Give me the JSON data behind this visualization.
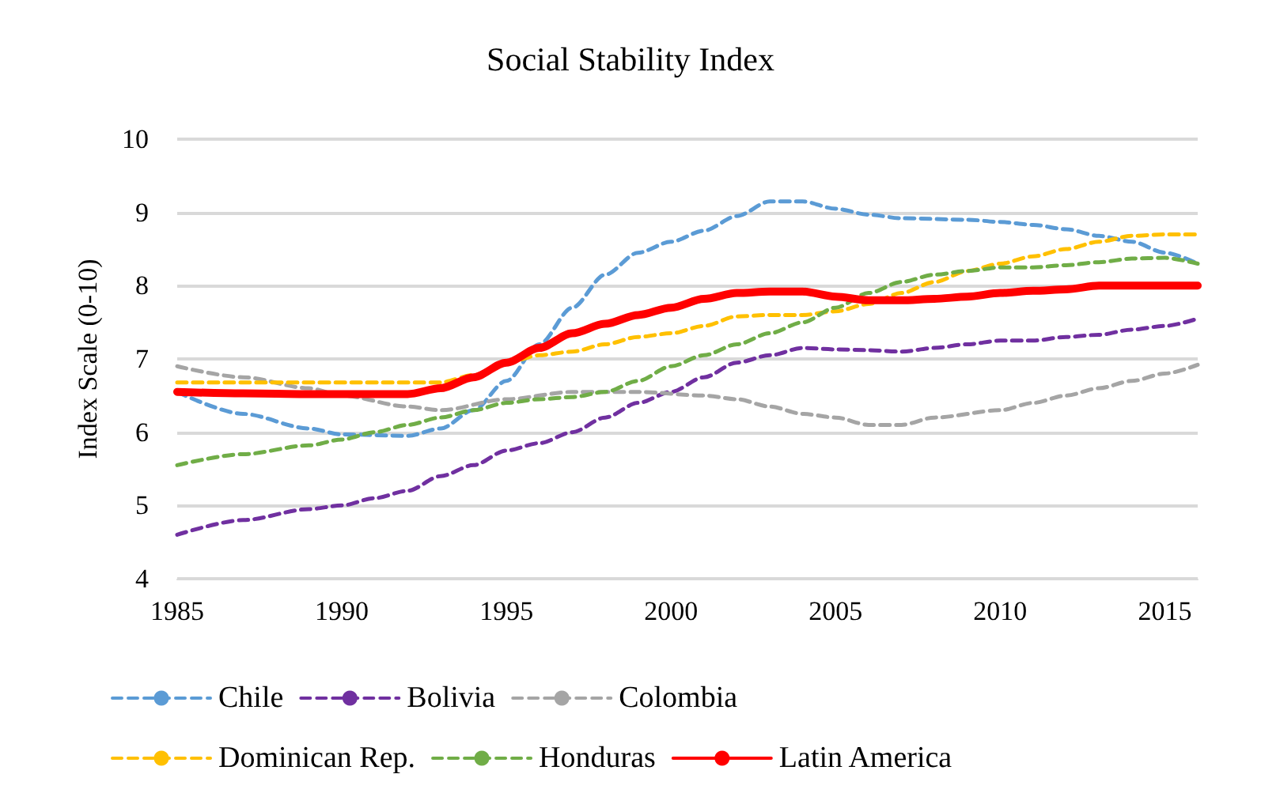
{
  "chart_data": {
    "type": "line",
    "title": "Social Stability Index",
    "ylabel": "Index Scale (0-10)",
    "xlim": [
      1985,
      2016
    ],
    "xticks": [
      1985,
      1990,
      1995,
      2000,
      2005,
      2010,
      2015
    ],
    "ylim": [
      4,
      10
    ],
    "yticks": [
      4,
      5,
      6,
      7,
      8,
      9,
      10
    ],
    "grid": "y",
    "legend": "bottom",
    "marker": "none",
    "series": [
      {
        "name": "Chile",
        "color": "#5b9bd5",
        "line_style": "dashed",
        "x": [
          1985,
          1987,
          1989,
          1990,
          1992,
          1993,
          1994,
          1995,
          1996,
          1997,
          1998,
          1999,
          2000,
          2001,
          2002,
          2003,
          2004,
          2005,
          2006,
          2007,
          2009,
          2010,
          2011,
          2012,
          2013,
          2014,
          2015,
          2016
        ],
        "values": [
          6.55,
          6.25,
          6.05,
          5.97,
          5.95,
          6.05,
          6.3,
          6.7,
          7.2,
          7.7,
          8.15,
          8.45,
          8.6,
          8.75,
          8.95,
          9.15,
          9.15,
          9.05,
          8.97,
          8.92,
          8.9,
          8.87,
          8.83,
          8.77,
          8.68,
          8.6,
          8.45,
          8.3
        ]
      },
      {
        "name": "Bolivia",
        "color": "#7030a0",
        "line_style": "dashed",
        "x": [
          1985,
          1987,
          1989,
          1990,
          1991,
          1992,
          1993,
          1994,
          1995,
          1996,
          1997,
          1998,
          1999,
          2000,
          2001,
          2002,
          2003,
          2004,
          2005,
          2006,
          2007,
          2008,
          2009,
          2010,
          2011,
          2012,
          2013,
          2014,
          2015,
          2016
        ],
        "values": [
          4.6,
          4.8,
          4.95,
          5.0,
          5.1,
          5.2,
          5.4,
          5.55,
          5.75,
          5.85,
          6.0,
          6.2,
          6.4,
          6.55,
          6.75,
          6.95,
          7.05,
          7.15,
          7.13,
          7.12,
          7.1,
          7.15,
          7.2,
          7.25,
          7.25,
          7.3,
          7.33,
          7.4,
          7.45,
          7.55
        ]
      },
      {
        "name": "Colombia",
        "color": "#a5a5a5",
        "line_style": "dashed",
        "x": [
          1985,
          1987,
          1989,
          1990,
          1992,
          1993,
          1995,
          1997,
          1999,
          2001,
          2002,
          2003,
          2004,
          2005,
          2006,
          2007,
          2008,
          2010,
          2011,
          2012,
          2013,
          2014,
          2015,
          2016
        ],
        "values": [
          6.9,
          6.75,
          6.6,
          6.5,
          6.35,
          6.3,
          6.45,
          6.55,
          6.55,
          6.5,
          6.45,
          6.35,
          6.25,
          6.2,
          6.1,
          6.1,
          6.2,
          6.3,
          6.4,
          6.5,
          6.6,
          6.7,
          6.8,
          6.92
        ]
      },
      {
        "name": "Dominican Rep.",
        "color": "#ffc000",
        "line_style": "dashed",
        "x": [
          1985,
          1993,
          1994,
          1995,
          1996,
          1997,
          1998,
          1999,
          2000,
          2001,
          2002,
          2003,
          2004,
          2005,
          2006,
          2007,
          2008,
          2009,
          2010,
          2011,
          2012,
          2013,
          2014,
          2015,
          2016
        ],
        "values": [
          6.68,
          6.68,
          6.78,
          6.95,
          7.05,
          7.1,
          7.2,
          7.3,
          7.35,
          7.45,
          7.58,
          7.6,
          7.6,
          7.65,
          7.75,
          7.9,
          8.05,
          8.2,
          8.3,
          8.4,
          8.5,
          8.6,
          8.68,
          8.7,
          8.7
        ]
      },
      {
        "name": "Honduras",
        "color": "#70ad47",
        "line_style": "dashed",
        "x": [
          1985,
          1987,
          1989,
          1990,
          1991,
          1992,
          1993,
          1994,
          1995,
          1996,
          1997,
          1998,
          1999,
          2000,
          2001,
          2002,
          2003,
          2004,
          2005,
          2006,
          2007,
          2008,
          2009,
          2010,
          2011,
          2012,
          2013,
          2014,
          2015,
          2016
        ],
        "values": [
          5.55,
          5.7,
          5.82,
          5.9,
          6.0,
          6.1,
          6.2,
          6.3,
          6.4,
          6.45,
          6.48,
          6.55,
          6.7,
          6.9,
          7.05,
          7.2,
          7.35,
          7.5,
          7.7,
          7.9,
          8.05,
          8.15,
          8.2,
          8.25,
          8.25,
          8.28,
          8.32,
          8.37,
          8.38,
          8.3
        ]
      },
      {
        "name": "Latin America",
        "color": "#ff0000",
        "line_style": "solid",
        "x": [
          1985,
          1987,
          1989,
          1992,
          1993,
          1994,
          1995,
          1996,
          1997,
          1998,
          1999,
          2000,
          2001,
          2002,
          2003,
          2004,
          2005,
          2006,
          2007,
          2008,
          2009,
          2010,
          2011,
          2012,
          2013,
          2014,
          2015,
          2016
        ],
        "values": [
          6.55,
          6.53,
          6.52,
          6.52,
          6.6,
          6.75,
          6.95,
          7.15,
          7.35,
          7.48,
          7.6,
          7.7,
          7.82,
          7.9,
          7.92,
          7.92,
          7.85,
          7.8,
          7.8,
          7.82,
          7.85,
          7.9,
          7.93,
          7.95,
          8.0,
          8.0,
          8.0,
          8.0
        ]
      }
    ]
  }
}
